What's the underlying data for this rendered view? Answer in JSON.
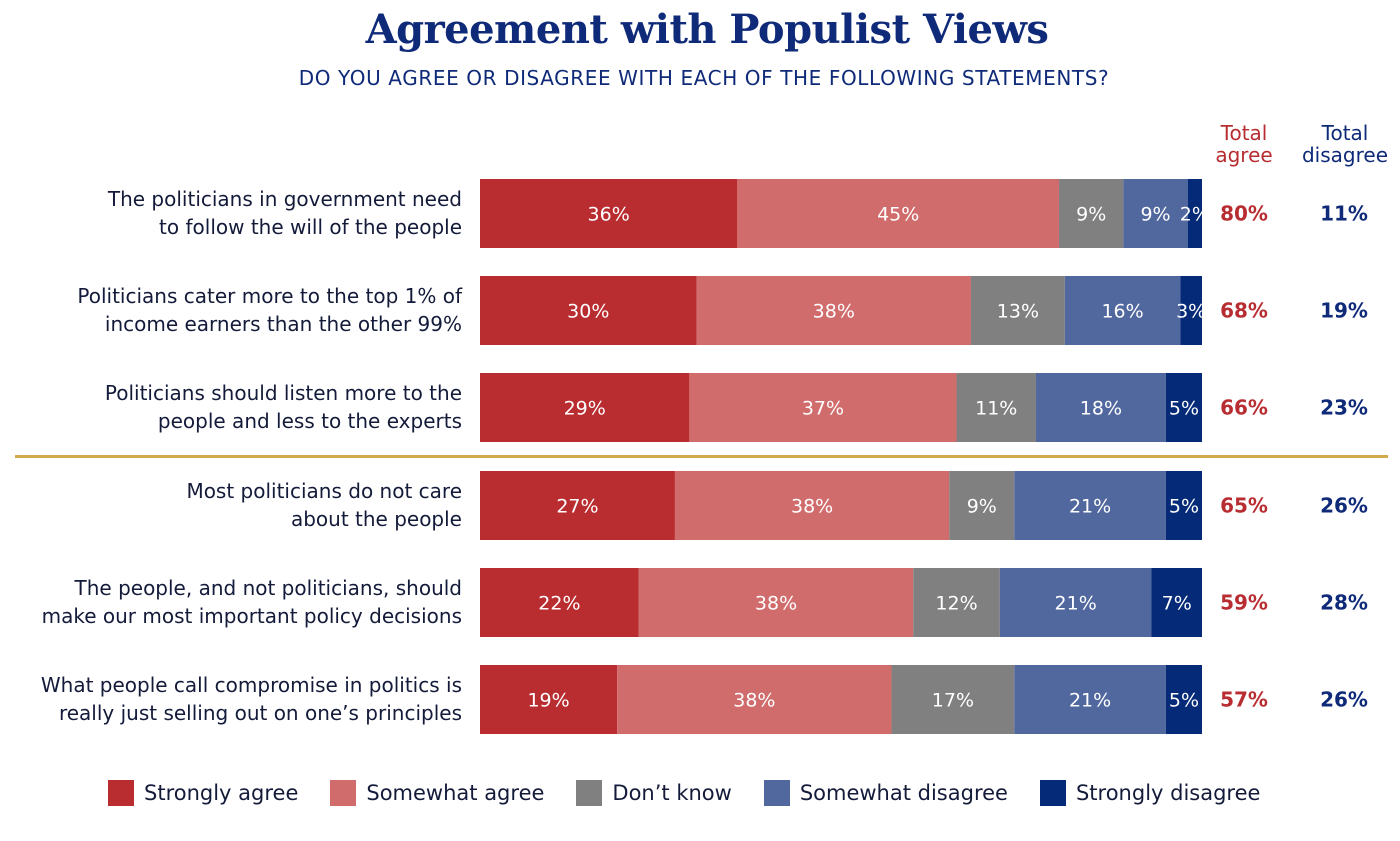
{
  "header": {
    "title": "Agreement with Populist Views",
    "subtitle": "DO YOU AGREE OR DISAGREE WITH EACH OF THE FOLLOWING STATEMENTS?",
    "total_agree_header": "Total agree",
    "total_disagree_header": "Total disagree"
  },
  "colors": {
    "strongly_agree": "#b92d31",
    "somewhat_agree": "#d16c6d",
    "dont_know": "#808080",
    "somewhat_disagree": "#51689f",
    "strongly_disagree": "#052a78",
    "title": "#0f2a78",
    "total_agree": "#b82d31",
    "total_disagree": "#0f2a78",
    "divider": "#d4a94c",
    "label_text": "#141b3a"
  },
  "chart_data": {
    "type": "bar",
    "orientation": "horizontal",
    "stacked": true,
    "title": "Agreement with Populist Views",
    "subtitle": "DO YOU AGREE OR DISAGREE WITH EACH OF THE FOLLOWING STATEMENTS?",
    "xlabel": "",
    "ylabel": "",
    "xlim": [
      0,
      100
    ],
    "grid": false,
    "legend_position": "bottom",
    "categories": [
      "The politicians in government need to follow the will of the people",
      "Politicians cater more to the top 1% of income earners than the other 99%",
      "Politicians should listen more to the people and less to the experts",
      "Most politicians do not care about the people",
      "The people, and not politicians, should make our most important policy decisions",
      "What people call compromise in politics is really just selling out on one’s principles"
    ],
    "category_lines": [
      [
        "The politicians in government need",
        "to follow the will of the people"
      ],
      [
        "Politicians cater more to the top 1% of",
        "income earners than the other 99%"
      ],
      [
        "Politicians should listen more to the",
        "people and less to the experts"
      ],
      [
        "Most politicians do not care",
        "about the people"
      ],
      [
        "The people, and not politicians, should",
        "make our most important policy decisions"
      ],
      [
        "What people call compromise in politics is",
        "really just selling out on one’s principles"
      ]
    ],
    "series": [
      {
        "name": "Strongly agree",
        "key": "strongly_agree",
        "values": [
          36,
          30,
          29,
          27,
          22,
          19
        ]
      },
      {
        "name": "Somewhat agree",
        "key": "somewhat_agree",
        "values": [
          45,
          38,
          37,
          38,
          38,
          38
        ]
      },
      {
        "name": "Don’t know",
        "key": "dont_know",
        "values": [
          9,
          13,
          11,
          9,
          12,
          17
        ]
      },
      {
        "name": "Somewhat disagree",
        "key": "somewhat_disagree",
        "values": [
          9,
          16,
          18,
          21,
          21,
          21
        ]
      },
      {
        "name": "Strongly disagree",
        "key": "strongly_disagree",
        "values": [
          2,
          3,
          5,
          5,
          7,
          5
        ]
      }
    ],
    "total_agree": [
      80,
      68,
      66,
      65,
      59,
      57
    ],
    "total_disagree": [
      11,
      19,
      23,
      26,
      28,
      26
    ],
    "value_suffix": "%",
    "divider_after_index": 2
  }
}
